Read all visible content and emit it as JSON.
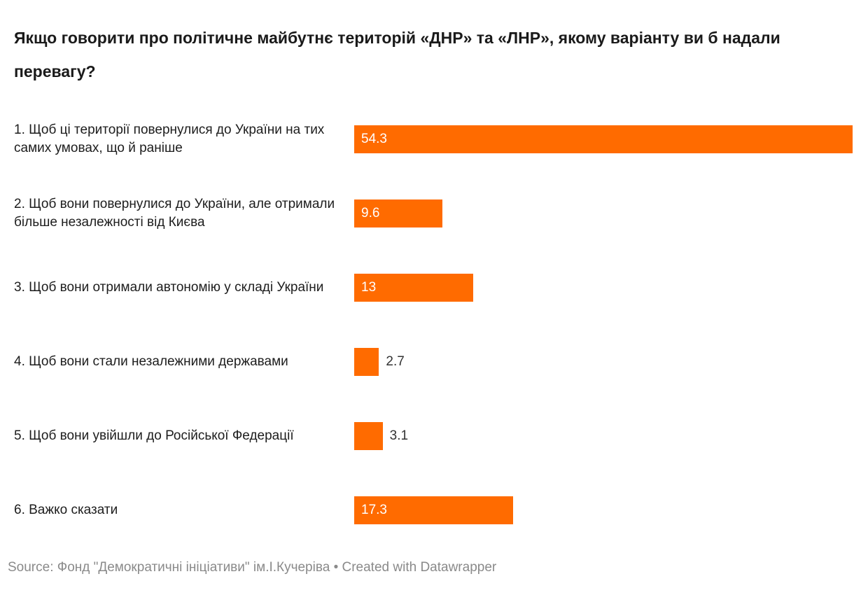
{
  "chart_data": {
    "type": "bar",
    "orientation": "horizontal",
    "title": "Якщо говорити про політичне майбутнє територій «ДНР» та «ЛНР», якому варіанту ви б надали перевагу?",
    "categories": [
      "1.   Щоб ці території повернулися до України на тих самих умовах, що й раніше",
      "2.   Щоб вони повернулися до України, але отримали більше незалежності від Києва",
      "3.   Щоб вони отримали автономію у складі України",
      "4.   Щоб вони стали незалежними державами",
      "5.   Щоб вони увійшли до Російської Федерації",
      "6.   Важко сказати"
    ],
    "values": [
      54.3,
      9.6,
      13,
      2.7,
      3.1,
      17.3
    ],
    "value_labels": [
      "54.3",
      "9.6",
      "13",
      "2.7",
      "3.1",
      "17.3"
    ],
    "xlim": [
      0,
      54.3
    ],
    "bar_color": "#ff6b00",
    "footer": "Source: Фонд \"Демократичні ініціативи\" ім.І.Кучеріва • Created with Datawrapper"
  }
}
